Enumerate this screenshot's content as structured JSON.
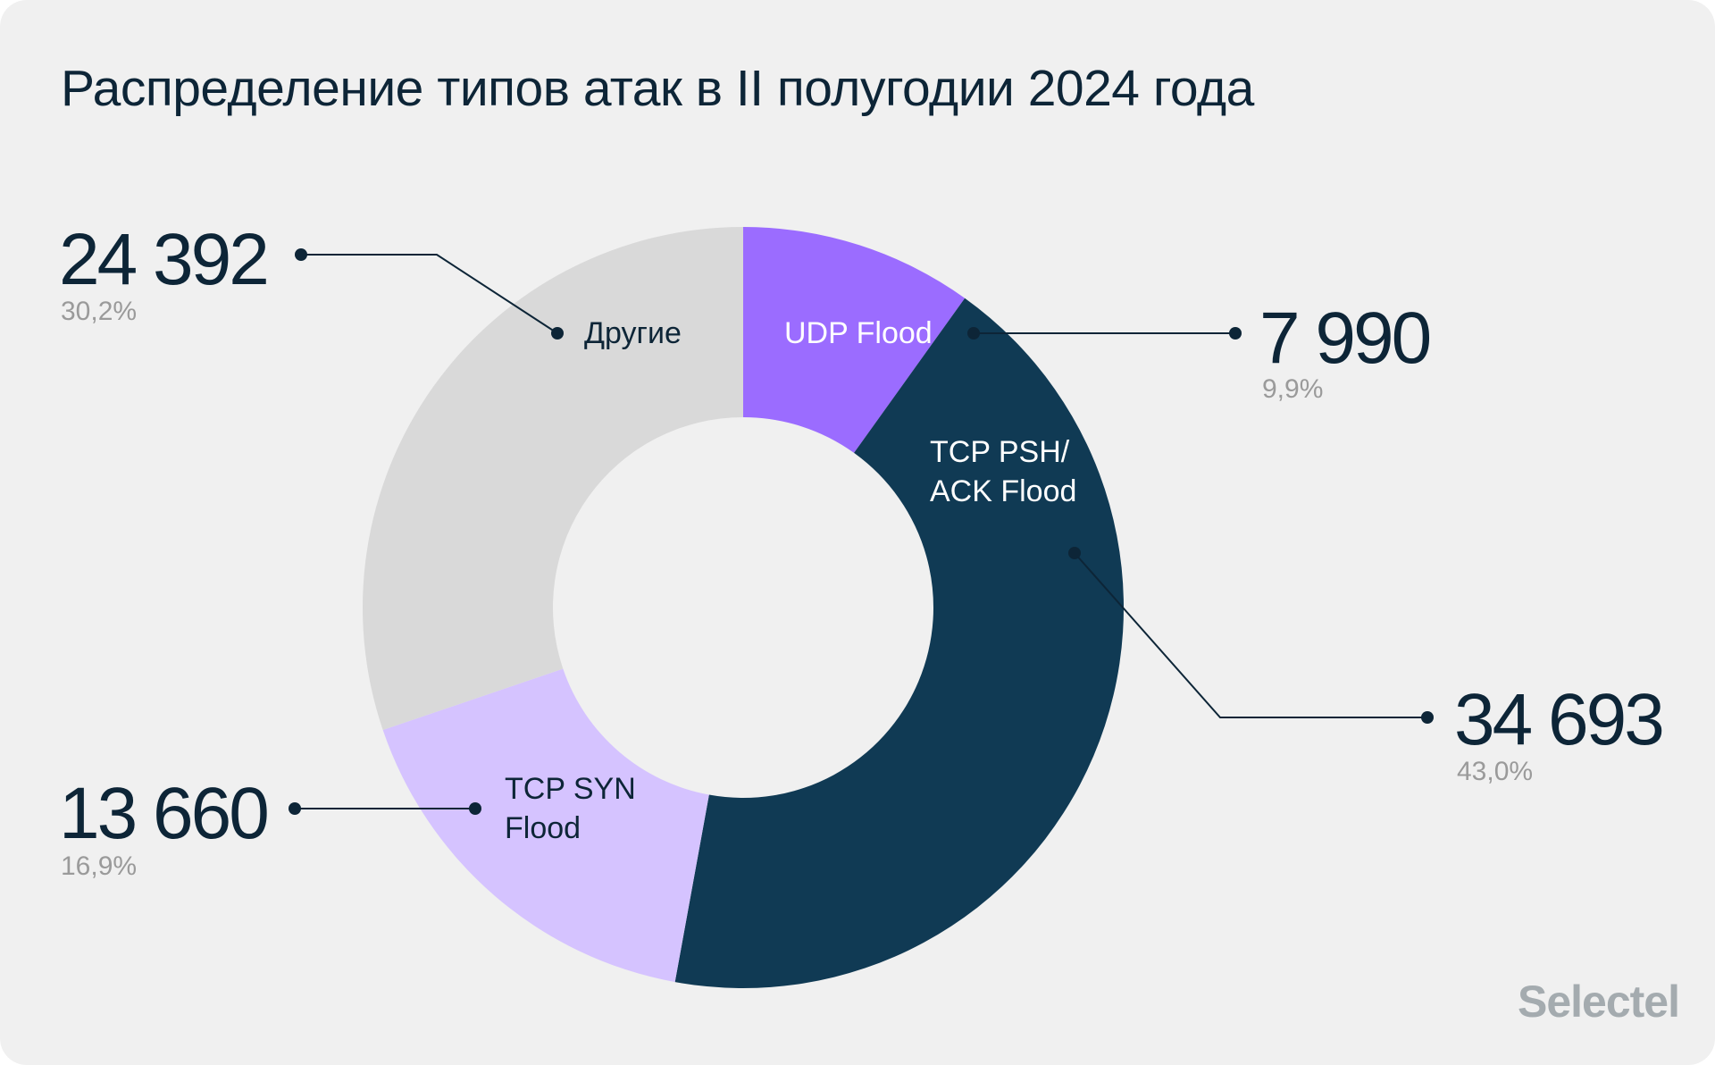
{
  "title": "Распределение типов атак в II полугодии 2024 года",
  "brand": "Selectel",
  "colors": {
    "background": "#f0f0f0",
    "text": "#0d2537",
    "muted": "#9a9a9a",
    "leader": "#0d2537"
  },
  "chart_data": {
    "type": "pie",
    "variant": "donut",
    "title": "Распределение типов атак в II полугодии 2024 года",
    "start_angle_deg": 0,
    "direction": "clockwise",
    "series": [
      {
        "name": "UDP Flood",
        "label_lines": [
          "UDP Flood"
        ],
        "value": 7990,
        "value_text": "7 990",
        "percent": 9.9,
        "percent_text": "9,9%",
        "color": "#9b6cff",
        "label_color": "#ffffff"
      },
      {
        "name": "TCP PSH/ ACK Flood",
        "label_lines": [
          "TCP PSH/",
          "ACK Flood"
        ],
        "value": 34693,
        "value_text": "34 693",
        "percent": 43.0,
        "percent_text": "43,0%",
        "color": "#103a54",
        "label_color": "#ffffff"
      },
      {
        "name": "TCP SYN Flood",
        "label_lines": [
          "TCP SYN",
          "Flood"
        ],
        "value": 13660,
        "value_text": "13 660",
        "percent": 16.9,
        "percent_text": "16,9%",
        "color": "#d5c3ff",
        "label_color": "#0d2537"
      },
      {
        "name": "Другие",
        "label_lines": [
          "Другие"
        ],
        "value": 24392,
        "value_text": "24 392",
        "percent": 30.2,
        "percent_text": "30,2%",
        "color": "#d9d9d9",
        "label_color": "#0d2537"
      }
    ]
  }
}
